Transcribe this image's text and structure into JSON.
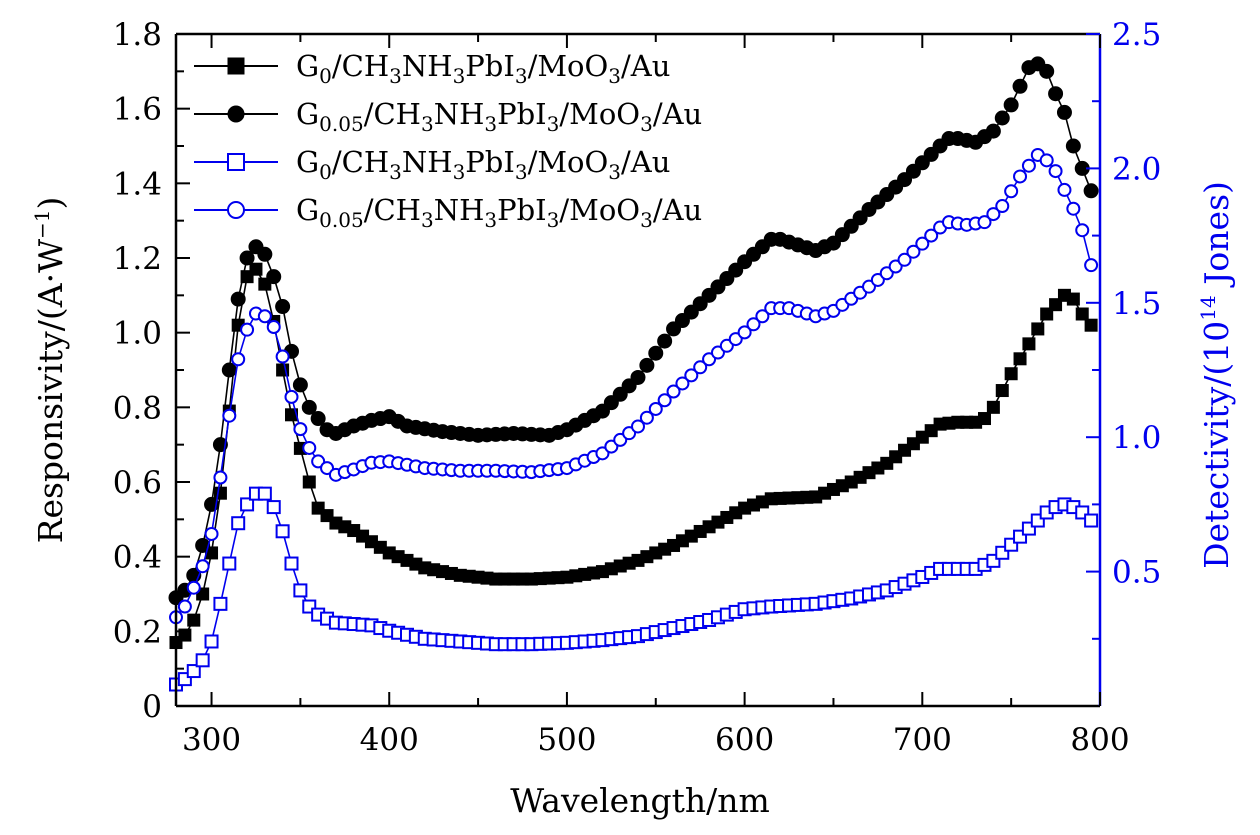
{
  "chart_data": {
    "type": "line",
    "xlabel": "Wavelength/nm",
    "ylabel_left": {
      "base": "Responsivity/(A·W",
      "sup": "−1",
      "end": ")"
    },
    "ylabel_right": {
      "base": "Detectivity/(10",
      "sup": "14",
      "end": " Jones)"
    },
    "xlim": [
      280,
      800
    ],
    "ylim_left": [
      0,
      1.8
    ],
    "ylim_right": [
      0,
      2.5
    ],
    "x_ticks": [
      300,
      400,
      500,
      600,
      700,
      800
    ],
    "y_left_ticks": [
      0,
      0.2,
      0.4,
      0.6,
      0.8,
      1.0,
      1.2,
      1.4,
      1.6,
      1.8
    ],
    "y_left_tick_labels": [
      "0",
      "0.2",
      "0.4",
      "0.6",
      "0.8",
      "1.0",
      "1.2",
      "1.4",
      "1.6",
      "1.8"
    ],
    "y_right_ticks": [
      0.5,
      1.0,
      1.5,
      2.0,
      2.5
    ],
    "y_right_tick_labels": [
      "0.5",
      "1.0",
      "1.5",
      "2.0",
      "2.5"
    ],
    "colors": {
      "left_axis": "#000000",
      "right_axis": "#0000ee"
    },
    "legend_position": "top-left",
    "x_step": 5,
    "series": [
      {
        "label_parts": [
          [
            "G",
            ""
          ],
          [
            "0",
            "sub"
          ],
          [
            "/CH",
            ""
          ],
          [
            "3",
            "sub"
          ],
          [
            "NH",
            ""
          ],
          [
            "3",
            "sub"
          ],
          [
            "PbI",
            ""
          ],
          [
            "3",
            "sub"
          ],
          [
            "/MoO",
            ""
          ],
          [
            "3",
            "sub"
          ],
          [
            "/Au",
            ""
          ]
        ],
        "axis": "left",
        "marker": "square",
        "filled": true,
        "color": "#000000",
        "anchors": [
          [
            280,
            0.17
          ],
          [
            285,
            0.19
          ],
          [
            290,
            0.23
          ],
          [
            295,
            0.3
          ],
          [
            300,
            0.41
          ],
          [
            305,
            0.57
          ],
          [
            310,
            0.79
          ],
          [
            315,
            1.02
          ],
          [
            320,
            1.15
          ],
          [
            325,
            1.17
          ],
          [
            330,
            1.13
          ],
          [
            335,
            1.03
          ],
          [
            340,
            0.9
          ],
          [
            345,
            0.78
          ],
          [
            350,
            0.69
          ],
          [
            355,
            0.6
          ],
          [
            360,
            0.53
          ],
          [
            370,
            0.49
          ],
          [
            380,
            0.47
          ],
          [
            390,
            0.44
          ],
          [
            400,
            0.41
          ],
          [
            420,
            0.37
          ],
          [
            440,
            0.35
          ],
          [
            460,
            0.34
          ],
          [
            480,
            0.34
          ],
          [
            500,
            0.345
          ],
          [
            520,
            0.36
          ],
          [
            540,
            0.39
          ],
          [
            560,
            0.43
          ],
          [
            580,
            0.48
          ],
          [
            600,
            0.53
          ],
          [
            615,
            0.555
          ],
          [
            640,
            0.56
          ],
          [
            660,
            0.6
          ],
          [
            680,
            0.65
          ],
          [
            700,
            0.72
          ],
          [
            710,
            0.755
          ],
          [
            720,
            0.76
          ],
          [
            730,
            0.76
          ],
          [
            735,
            0.77
          ],
          [
            740,
            0.8
          ],
          [
            750,
            0.89
          ],
          [
            760,
            0.97
          ],
          [
            770,
            1.05
          ],
          [
            780,
            1.1
          ],
          [
            785,
            1.09
          ],
          [
            790,
            1.05
          ],
          [
            795,
            1.02
          ]
        ]
      },
      {
        "label_parts": [
          [
            "G",
            ""
          ],
          [
            "0.05",
            "sub"
          ],
          [
            "/CH",
            ""
          ],
          [
            "3",
            "sub"
          ],
          [
            "NH",
            ""
          ],
          [
            "3",
            "sub"
          ],
          [
            "PbI",
            ""
          ],
          [
            "3",
            "sub"
          ],
          [
            "/MoO",
            ""
          ],
          [
            "3",
            "sub"
          ],
          [
            "/Au",
            ""
          ]
        ],
        "axis": "left",
        "marker": "circle",
        "filled": true,
        "color": "#000000",
        "anchors": [
          [
            280,
            0.29
          ],
          [
            285,
            0.31
          ],
          [
            290,
            0.35
          ],
          [
            295,
            0.43
          ],
          [
            300,
            0.54
          ],
          [
            305,
            0.7
          ],
          [
            310,
            0.9
          ],
          [
            315,
            1.09
          ],
          [
            320,
            1.2
          ],
          [
            325,
            1.23
          ],
          [
            330,
            1.21
          ],
          [
            335,
            1.15
          ],
          [
            340,
            1.07
          ],
          [
            345,
            0.95
          ],
          [
            350,
            0.86
          ],
          [
            355,
            0.8
          ],
          [
            360,
            0.77
          ],
          [
            365,
            0.74
          ],
          [
            370,
            0.73
          ],
          [
            380,
            0.75
          ],
          [
            390,
            0.765
          ],
          [
            400,
            0.775
          ],
          [
            410,
            0.75
          ],
          [
            430,
            0.735
          ],
          [
            450,
            0.725
          ],
          [
            470,
            0.73
          ],
          [
            490,
            0.725
          ],
          [
            500,
            0.74
          ],
          [
            520,
            0.79
          ],
          [
            540,
            0.88
          ],
          [
            560,
            1.01
          ],
          [
            580,
            1.1
          ],
          [
            600,
            1.19
          ],
          [
            615,
            1.25
          ],
          [
            620,
            1.25
          ],
          [
            640,
            1.22
          ],
          [
            650,
            1.24
          ],
          [
            670,
            1.33
          ],
          [
            690,
            1.41
          ],
          [
            710,
            1.5
          ],
          [
            715,
            1.52
          ],
          [
            720,
            1.52
          ],
          [
            730,
            1.51
          ],
          [
            740,
            1.54
          ],
          [
            750,
            1.61
          ],
          [
            755,
            1.66
          ],
          [
            760,
            1.71
          ],
          [
            765,
            1.72
          ],
          [
            770,
            1.7
          ],
          [
            775,
            1.64
          ],
          [
            780,
            1.59
          ],
          [
            785,
            1.5
          ],
          [
            790,
            1.44
          ],
          [
            795,
            1.38
          ]
        ]
      },
      {
        "label_parts": [
          [
            "G",
            ""
          ],
          [
            "0",
            "sub"
          ],
          [
            "/CH",
            ""
          ],
          [
            "3",
            "sub"
          ],
          [
            "NH",
            ""
          ],
          [
            "3",
            "sub"
          ],
          [
            "PbI",
            ""
          ],
          [
            "3",
            "sub"
          ],
          [
            "/MoO",
            ""
          ],
          [
            "3",
            "sub"
          ],
          [
            "/Au",
            ""
          ]
        ],
        "axis": "right",
        "marker": "square",
        "filled": false,
        "color": "#0000ee",
        "anchors": [
          [
            280,
            0.08
          ],
          [
            285,
            0.1
          ],
          [
            290,
            0.13
          ],
          [
            295,
            0.17
          ],
          [
            300,
            0.24
          ],
          [
            305,
            0.38
          ],
          [
            310,
            0.53
          ],
          [
            315,
            0.68
          ],
          [
            320,
            0.75
          ],
          [
            325,
            0.79
          ],
          [
            330,
            0.79
          ],
          [
            335,
            0.74
          ],
          [
            340,
            0.65
          ],
          [
            345,
            0.53
          ],
          [
            350,
            0.43
          ],
          [
            355,
            0.37
          ],
          [
            360,
            0.34
          ],
          [
            370,
            0.31
          ],
          [
            390,
            0.3
          ],
          [
            400,
            0.28
          ],
          [
            420,
            0.25
          ],
          [
            440,
            0.24
          ],
          [
            460,
            0.23
          ],
          [
            480,
            0.23
          ],
          [
            500,
            0.235
          ],
          [
            520,
            0.245
          ],
          [
            540,
            0.26
          ],
          [
            560,
            0.29
          ],
          [
            580,
            0.32
          ],
          [
            600,
            0.36
          ],
          [
            615,
            0.37
          ],
          [
            640,
            0.38
          ],
          [
            660,
            0.4
          ],
          [
            680,
            0.43
          ],
          [
            700,
            0.48
          ],
          [
            710,
            0.51
          ],
          [
            730,
            0.51
          ],
          [
            740,
            0.54
          ],
          [
            750,
            0.6
          ],
          [
            760,
            0.66
          ],
          [
            770,
            0.72
          ],
          [
            775,
            0.74
          ],
          [
            780,
            0.75
          ],
          [
            785,
            0.74
          ],
          [
            790,
            0.72
          ],
          [
            795,
            0.69
          ]
        ]
      },
      {
        "label_parts": [
          [
            "G",
            ""
          ],
          [
            "0.05",
            "sub"
          ],
          [
            "/CH",
            ""
          ],
          [
            "3",
            "sub"
          ],
          [
            "NH",
            ""
          ],
          [
            "3",
            "sub"
          ],
          [
            "PbI",
            ""
          ],
          [
            "3",
            "sub"
          ],
          [
            "/MoO",
            ""
          ],
          [
            "3",
            "sub"
          ],
          [
            "/Au",
            ""
          ]
        ],
        "axis": "right",
        "marker": "circle",
        "filled": false,
        "color": "#0000ee",
        "anchors": [
          [
            280,
            0.33
          ],
          [
            285,
            0.37
          ],
          [
            290,
            0.44
          ],
          [
            295,
            0.52
          ],
          [
            300,
            0.64
          ],
          [
            305,
            0.85
          ],
          [
            310,
            1.08
          ],
          [
            315,
            1.29
          ],
          [
            320,
            1.4
          ],
          [
            325,
            1.46
          ],
          [
            330,
            1.45
          ],
          [
            335,
            1.41
          ],
          [
            340,
            1.3
          ],
          [
            345,
            1.15
          ],
          [
            350,
            1.03
          ],
          [
            355,
            0.96
          ],
          [
            360,
            0.91
          ],
          [
            370,
            0.86
          ],
          [
            380,
            0.88
          ],
          [
            390,
            0.905
          ],
          [
            400,
            0.91
          ],
          [
            420,
            0.885
          ],
          [
            440,
            0.875
          ],
          [
            460,
            0.875
          ],
          [
            480,
            0.87
          ],
          [
            500,
            0.885
          ],
          [
            520,
            0.94
          ],
          [
            540,
            1.04
          ],
          [
            560,
            1.17
          ],
          [
            580,
            1.29
          ],
          [
            600,
            1.39
          ],
          [
            615,
            1.48
          ],
          [
            625,
            1.48
          ],
          [
            640,
            1.45
          ],
          [
            650,
            1.47
          ],
          [
            670,
            1.56
          ],
          [
            690,
            1.66
          ],
          [
            710,
            1.78
          ],
          [
            715,
            1.8
          ],
          [
            725,
            1.79
          ],
          [
            735,
            1.8
          ],
          [
            745,
            1.86
          ],
          [
            755,
            1.97
          ],
          [
            765,
            2.05
          ],
          [
            770,
            2.03
          ],
          [
            775,
            1.99
          ],
          [
            780,
            1.92
          ],
          [
            785,
            1.85
          ],
          [
            790,
            1.77
          ],
          [
            795,
            1.64
          ]
        ]
      }
    ]
  }
}
